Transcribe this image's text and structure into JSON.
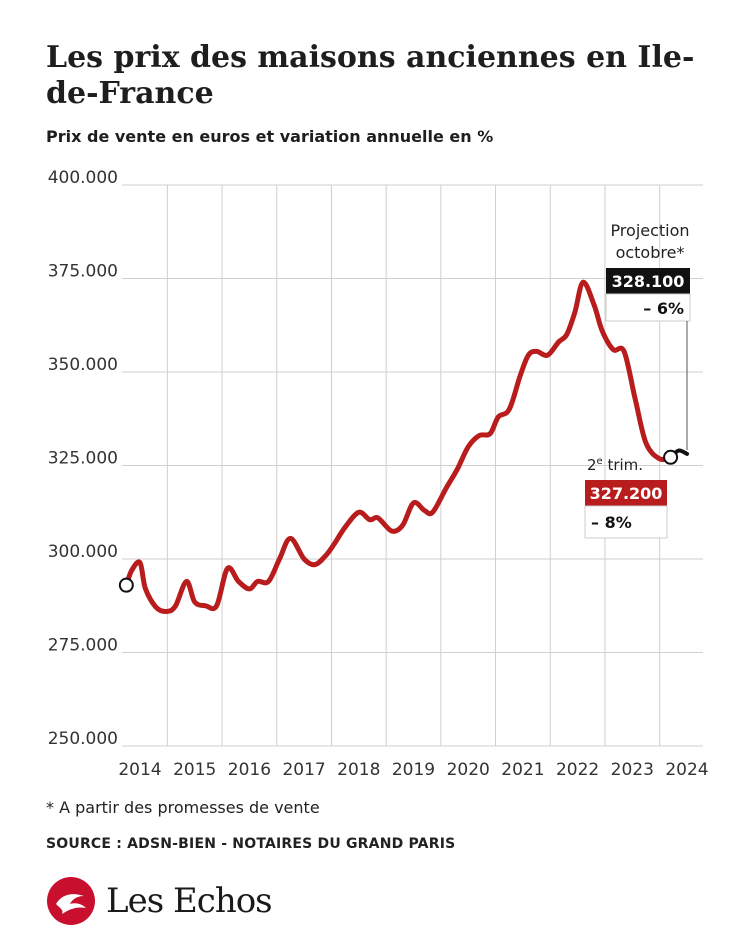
{
  "header": {
    "title": "Les prix des maisons anciennes en Ile-de-France",
    "subtitle": "Prix de vente en euros et variation annuelle en %"
  },
  "footer": {
    "footnote": "* A partir des promesses de vente",
    "source": "SOURCE : ADSN-BIEN - NOTAIRES DU GRAND PARIS",
    "logo_text": "Les Echos"
  },
  "colors": {
    "line": "#b81c1c",
    "grid": "#cfcfcf",
    "label_dark": "#111111",
    "label_red": "#b81c1c",
    "logo_red": "#c8102e"
  },
  "annotations": {
    "projection": {
      "title_line1": "Projection",
      "title_line2": "octobre*",
      "value": "328.100",
      "change": "– 6%"
    },
    "q2": {
      "title": "2",
      "title_sup": "e",
      "title_rest": " trim.",
      "value": "327.200",
      "change": "– 8%"
    }
  },
  "chart_data": {
    "type": "line",
    "title": "Les prix des maisons anciennes en Ile-de-France",
    "subtitle": "Prix de vente en euros et variation annuelle en %",
    "ylim": [
      250000,
      400000
    ],
    "y_ticks": [
      "400.000",
      "375.000",
      "350.000",
      "325.000",
      "300.000",
      "275.000",
      "250.000"
    ],
    "y_tick_values": [
      400000,
      375000,
      350000,
      325000,
      300000,
      275000,
      250000
    ],
    "x_ticks": [
      "2014",
      "2015",
      "2016",
      "2017",
      "2018",
      "2019",
      "2020",
      "2021",
      "2022",
      "2023",
      "2024"
    ],
    "x_tick_values": [
      2014,
      2015,
      2016,
      2017,
      2018,
      2019,
      2020,
      2021,
      2022,
      2023,
      2024
    ],
    "grid": true,
    "series": [
      {
        "x": [
          2013.75,
          2013.85,
          2014.0,
          2014.1,
          2014.3,
          2014.5,
          2014.65,
          2014.85,
          2015.0,
          2015.2,
          2015.4,
          2015.6,
          2015.8,
          2016.0,
          2016.15,
          2016.35,
          2016.55,
          2016.75,
          2017.0,
          2017.2,
          2017.4,
          2017.55,
          2017.75,
          2018.0,
          2018.2,
          2018.35,
          2018.6,
          2018.8,
          2019.0,
          2019.2,
          2019.35,
          2019.6,
          2019.8,
          2020.0,
          2020.2,
          2020.4,
          2020.55,
          2020.75,
          2020.95,
          2021.1,
          2021.25,
          2021.45,
          2021.65,
          2021.8,
          2021.95,
          2022.1,
          2022.3,
          2022.45,
          2022.65,
          2022.85,
          2023.05,
          2023.25,
          2023.5,
          2023.7
        ],
        "values": [
          293000,
          297000,
          299000,
          292000,
          287000,
          286000,
          287500,
          294000,
          288500,
          287500,
          287500,
          297500,
          294000,
          292000,
          294000,
          294000,
          300000,
          305500,
          300000,
          298500,
          301000,
          304000,
          308500,
          312500,
          310500,
          311000,
          307500,
          309000,
          315000,
          313000,
          312500,
          319000,
          324000,
          330000,
          333000,
          333500,
          338000,
          340000,
          349000,
          354500,
          355500,
          354500,
          358000,
          360000,
          366000,
          374000,
          368000,
          361000,
          356000,
          355500,
          343000,
          331000,
          326800,
          327200
        ]
      }
    ],
    "projection_series": {
      "x": [
        2023.7,
        2023.85,
        2024.0
      ],
      "values": [
        327200,
        329000,
        328100
      ]
    },
    "markers": {
      "start": {
        "x": 2013.75,
        "value": 293000
      },
      "q2_2023": {
        "x": 2023.7,
        "value": 327200
      }
    }
  }
}
